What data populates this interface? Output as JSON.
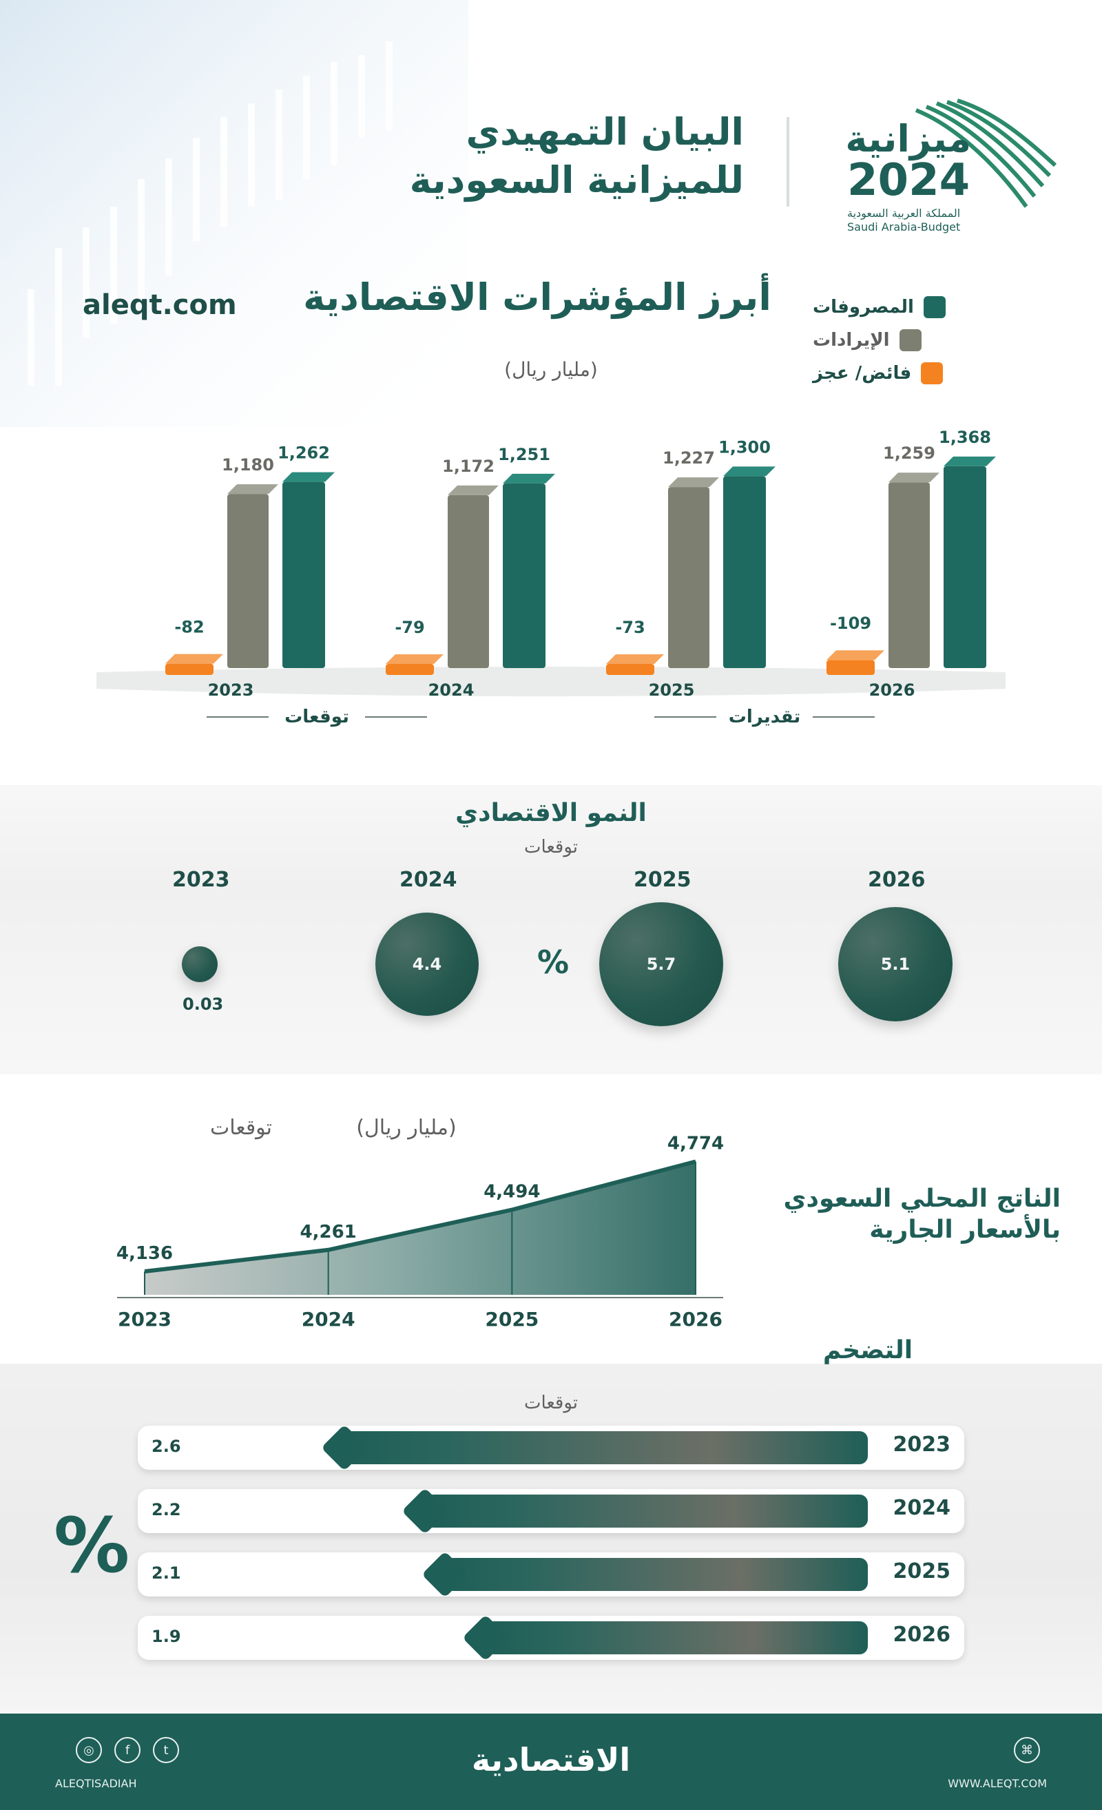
{
  "header": {
    "title_line1": "البيان التمهيدي",
    "title_line2": "للميزانية السعودية",
    "logo_word": "ميزانية",
    "logo_year": "2024",
    "logo_sub_ar": "المملكة العربية السعودية",
    "logo_sub_en": "Saudi Arabia-Budget",
    "site": "aleqt.com"
  },
  "colors": {
    "teal": "#1f6a60",
    "teal_dark": "#1e5f57",
    "olive": "#7d7f70",
    "orange": "#f58220",
    "grey_text": "#5f5f5f"
  },
  "indicators": {
    "title": "أبرز المؤشرات الاقتصادية",
    "unit": "(مليار ريال)",
    "legend": [
      {
        "label": "المصروفات",
        "color": "#1f6a60",
        "icon": "legend-expenses-icon"
      },
      {
        "label": "الإيرادات",
        "color": "#7d7f70",
        "icon": "legend-revenues-icon"
      },
      {
        "label": "فائض/ عجز",
        "color": "#f58220",
        "icon": "legend-balance-icon"
      }
    ],
    "groups": [
      {
        "label": "توقعات"
      },
      {
        "label": "تقديرات"
      }
    ]
  },
  "growth": {
    "title": "النمو الاقتصادي",
    "subtitle": "توقعات",
    "percent_sign": "%"
  },
  "gdp": {
    "title_line1": "الناتج المحلي السعودي",
    "title_line2": "بالأسعار الجارية",
    "unit": "(مليار ريال)",
    "note": "توقعات"
  },
  "inflation": {
    "title": "التضخم",
    "subtitle": "توقعات",
    "percent_sign": "%"
  },
  "footer": {
    "brand": "الاقتصادية",
    "handle": "ALEQTISADIAH",
    "website": "WWW.ALEQT.COM"
  },
  "chart_data": [
    {
      "type": "bar",
      "categories": [
        "2023",
        "2024",
        "2025",
        "2026"
      ],
      "series": [
        {
          "name": "الإيرادات",
          "values": [
            1180,
            1172,
            1227,
            1259
          ]
        },
        {
          "name": "المصروفات",
          "values": [
            1262,
            1251,
            1300,
            1368
          ]
        },
        {
          "name": "فائض/ عجز",
          "values": [
            -82,
            -79,
            -73,
            -109
          ]
        }
      ],
      "value_labels": {
        "revenues": [
          "1,180",
          "1,172",
          "1,227",
          "1,259"
        ],
        "expenses": [
          "1,262",
          "1,251",
          "1,300",
          "1,368"
        ],
        "balance": [
          "-82",
          "-79",
          "-73",
          "-109"
        ]
      },
      "title": "أبرز المؤشرات الاقتصادية",
      "ylabel": "",
      "xlabel": ""
    },
    {
      "type": "scatter",
      "categories": [
        "2023",
        "2024",
        "2025",
        "2026"
      ],
      "values": [
        0.03,
        4.4,
        5.7,
        5.1
      ],
      "value_labels": [
        "0.03",
        "4.4",
        "5.7",
        "5.1"
      ],
      "title": "النمو الاقتصادي"
    },
    {
      "type": "area",
      "categories": [
        "2023",
        "2024",
        "2025",
        "2026"
      ],
      "values": [
        4136,
        4261,
        4494,
        4774
      ],
      "value_labels": [
        "4,136",
        "4,261",
        "4,494",
        "4,774"
      ],
      "title": "الناتج المحلي السعودي بالأسعار الجارية"
    },
    {
      "type": "bar",
      "categories": [
        "2023",
        "2024",
        "2025",
        "2026"
      ],
      "values": [
        2.6,
        2.2,
        2.1,
        1.9
      ],
      "value_labels": [
        "2.6",
        "2.2",
        "2.1",
        "1.9"
      ],
      "title": "التضخم"
    }
  ]
}
